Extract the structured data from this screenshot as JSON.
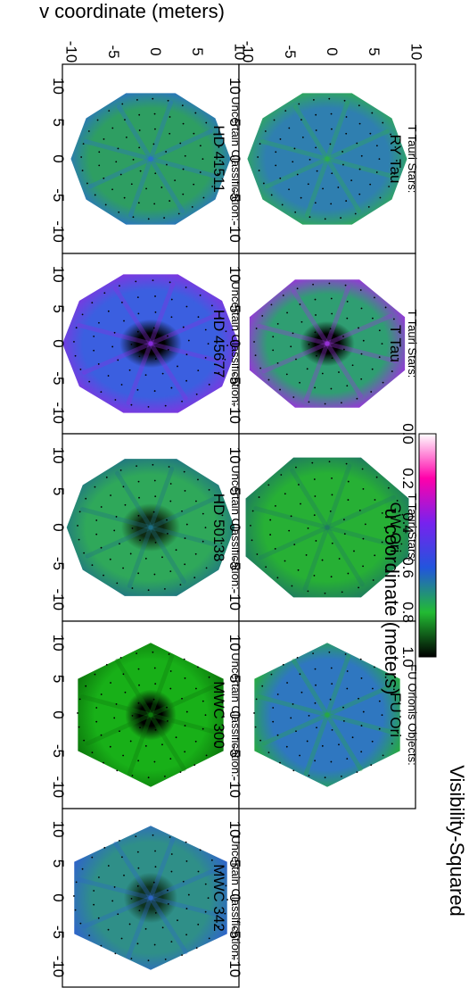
{
  "figure": {
    "x_axis_label": "u coordinate (meters)",
    "y_axis_label": "v coordinate (meters)",
    "colorbar_label": "Visibility-Squared",
    "colorbar_ticks": [
      "0.0",
      "0.2",
      "0.4",
      "0.6",
      "0.8",
      "1.0"
    ]
  },
  "chart_data": {
    "type": "heatmap",
    "title": "",
    "xlabel": "u coordinate (meters)",
    "ylabel": "v coordinate (meters)",
    "xlim": [
      13,
      -13
    ],
    "ylim": [
      -10.5,
      10.5
    ],
    "x_ticks": [
      10,
      5,
      0,
      -5,
      -10
    ],
    "y_ticks": [
      -10,
      -5,
      0,
      5,
      10
    ],
    "value_range": [
      0.0,
      1.0
    ],
    "colorbar": {
      "label": "Visibility-Squared",
      "ticks": [
        0.0,
        0.2,
        0.4,
        0.6,
        0.8,
        1.0
      ],
      "colors": [
        "#ffffff",
        "#ff00aa",
        "#7722ee",
        "#2255dd",
        "#22bb33",
        "#000000"
      ]
    },
    "panels": [
      {
        "category": "Uncertain Classification:",
        "object": "HD 41511",
        "row": 0,
        "col": 0,
        "shape": "decagon",
        "r": 9.5,
        "base": "#2e9e62",
        "accent": "#2a6fcc",
        "core": ""
      },
      {
        "category": "Uncertain Classification:",
        "object": "HD 45677",
        "row": 0,
        "col": 1,
        "shape": "decagon",
        "r": 10.5,
        "base": "#3b5fe0",
        "accent": "#8a2fe0",
        "core": "#000000"
      },
      {
        "category": "Uncertain Classification:",
        "object": "HD 50138",
        "row": 0,
        "col": 2,
        "shape": "decagon",
        "r": 10,
        "base": "#2fa85a",
        "accent": "#1f6f88",
        "core": "#0e2a12"
      },
      {
        "category": "Uncertain Classification:",
        "object": "MWC 300",
        "row": 0,
        "col": 3,
        "shape": "hexagon",
        "r": 10,
        "base": "#18b018",
        "accent": "#0d7a0d",
        "core": "#000000"
      },
      {
        "category": "Uncertain Classification:",
        "object": "MWC 342",
        "row": 0,
        "col": 4,
        "shape": "hexagon",
        "r": 10.5,
        "base": "#2f8f88",
        "accent": "#2f66c8",
        "core": "#0e3320"
      },
      {
        "category": "T Tauri Stars:",
        "object": "RY Tau",
        "row": 1,
        "col": 0,
        "shape": "decagon",
        "r": 9.5,
        "base": "#2f7fb0",
        "accent": "#2fae4e",
        "core": ""
      },
      {
        "category": "T Tauri Stars:",
        "object": "T Tau",
        "row": 1,
        "col": 1,
        "shape": "octagon",
        "r": 10,
        "base": "#2f9e72",
        "accent": "#9a33dd",
        "core": "#000000"
      },
      {
        "category": "T Tauri Stars:",
        "object": "GW Ori",
        "row": 1,
        "col": 2,
        "shape": "octagon",
        "r": 10.5,
        "base": "#27b035",
        "accent": "#1f7a60",
        "core": ""
      },
      {
        "category": "FU Orionis Objects:",
        "object": "FU Ori",
        "row": 1,
        "col": 3,
        "shape": "hexagon",
        "r": 10,
        "base": "#2f77c0",
        "accent": "#27a846",
        "core": ""
      }
    ]
  }
}
